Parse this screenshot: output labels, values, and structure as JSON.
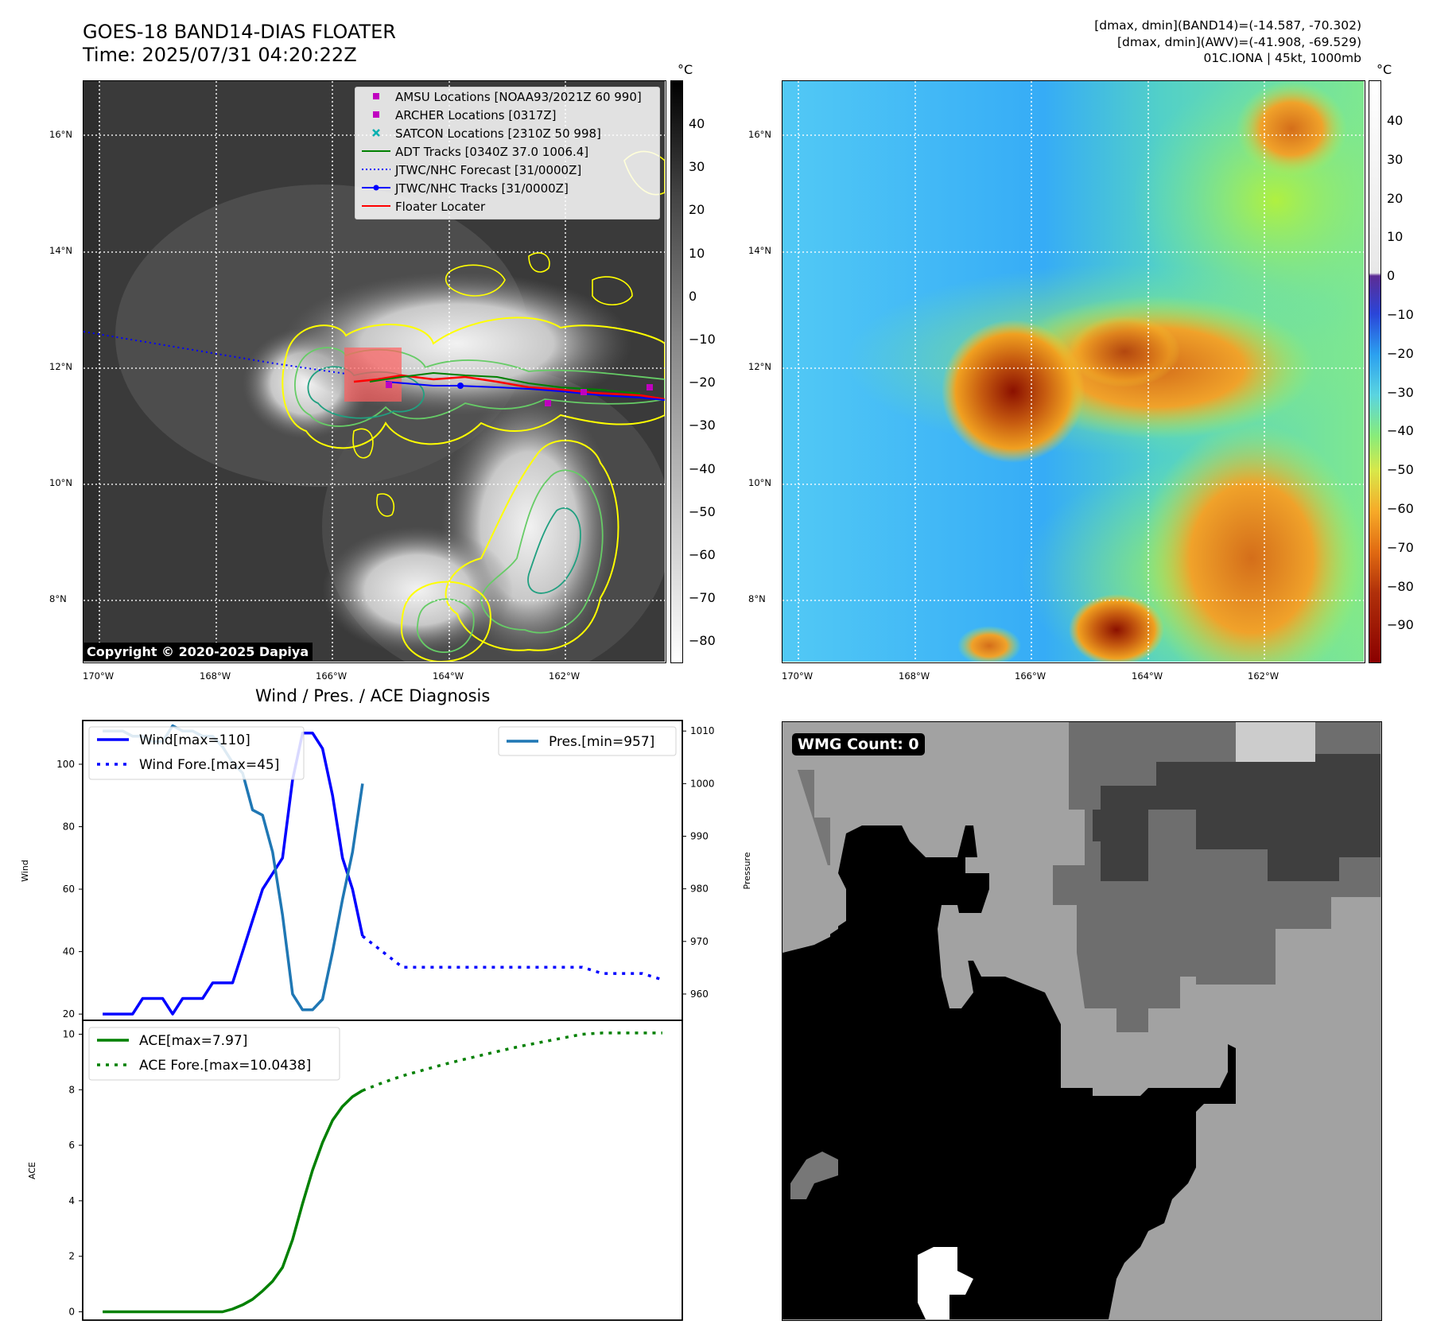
{
  "header": {
    "title_line1": "GOES-18 BAND14-DIAS FLOATER",
    "title_line2": "Time: 2025/07/31 04:20:22Z",
    "stats_line1": "[dmax, dmin](BAND14)=(-14.587, -70.302)",
    "stats_line2": "[dmax, dmin](AWV)=(-41.908, -69.529)",
    "stats_line3": "01C.IONA | 45kt, 1000mb"
  },
  "map_axes": {
    "lat_labels": [
      "16°N",
      "14°N",
      "12°N",
      "10°N",
      "8°N"
    ],
    "lon_labels": [
      "170°W",
      "168°W",
      "166°W",
      "164°W",
      "162°W"
    ],
    "unit": "°C",
    "copyright": "Copyright © 2020-2025 Dapiya"
  },
  "left_colorbar": {
    "ticks": [
      "40",
      "30",
      "20",
      "10",
      "0",
      "−10",
      "−20",
      "−30",
      "−40",
      "−50",
      "−60",
      "−70",
      "−80"
    ]
  },
  "right_colorbar": {
    "ticks": [
      "40",
      "30",
      "20",
      "10",
      "0",
      "−10",
      "−20",
      "−30",
      "−40",
      "−50",
      "−60",
      "−70",
      "−80",
      "−90"
    ]
  },
  "map_legend": {
    "items": [
      {
        "label": "AMSU Locations [NOAA93/2021Z 60 990]",
        "color": "#c000c0",
        "kind": "square"
      },
      {
        "label": "ARCHER Locations [0317Z]",
        "color": "#c000c0",
        "kind": "square"
      },
      {
        "label": "SATCON Locations [2310Z 50 998]",
        "color": "#00b0b0",
        "kind": "x"
      },
      {
        "label": "ADT Tracks [0340Z 37.0 1006.4]",
        "color": "#008000",
        "kind": "line"
      },
      {
        "label": "JTWC/NHC Forecast [31/0000Z]",
        "color": "#0000ff",
        "kind": "dotted"
      },
      {
        "label": "JTWC/NHC Tracks [31/0000Z]",
        "color": "#0000ff",
        "kind": "line-dot"
      },
      {
        "label": "Floater Locater",
        "color": "#ff0000",
        "kind": "line"
      }
    ]
  },
  "chart_data": [
    {
      "type": "line",
      "title": "Wind / Pres. / ACE Diagnosis",
      "ylabel": "Wind",
      "ylabel_right": "Pressure",
      "ylim": [
        18,
        114
      ],
      "ylim_right": [
        955,
        1012
      ],
      "yticks": [
        20,
        40,
        60,
        80,
        100
      ],
      "yticks_right": [
        960,
        970,
        980,
        990,
        1000,
        1010
      ],
      "series": [
        {
          "name": "Wind[max=110]",
          "color": "#0000ff",
          "style": "solid",
          "x": [
            0,
            1,
            2,
            3,
            4,
            5,
            6,
            7,
            8,
            9,
            10,
            11,
            12,
            13,
            14,
            15,
            16,
            17,
            18,
            19,
            20,
            21,
            22,
            23,
            24,
            25,
            26
          ],
          "values": [
            20,
            20,
            20,
            20,
            25,
            25,
            25,
            20,
            25,
            25,
            25,
            30,
            30,
            30,
            40,
            50,
            60,
            65,
            70,
            95,
            110,
            110,
            105,
            90,
            70,
            60,
            45
          ]
        },
        {
          "name": "Wind Fore.[max=45]",
          "color": "#0000ff",
          "style": "dotted",
          "x": [
            26,
            28,
            30,
            32,
            34,
            36,
            38,
            40,
            42,
            44,
            46,
            48,
            50,
            52,
            54,
            56
          ],
          "values": [
            45,
            40,
            35,
            35,
            35,
            35,
            35,
            35,
            35,
            35,
            35,
            35,
            33,
            33,
            33,
            31
          ]
        },
        {
          "name": "Pres.[min=957]",
          "color": "#1f77b4",
          "style": "solid",
          "axis": "right",
          "x": [
            0,
            1,
            2,
            3,
            4,
            5,
            6,
            7,
            8,
            9,
            10,
            11,
            12,
            13,
            14,
            15,
            16,
            17,
            18,
            19,
            20,
            21,
            22,
            23,
            24,
            25,
            26
          ],
          "values": [
            1010,
            1010,
            1010,
            1009,
            1009,
            1008,
            1008,
            1011,
            1010,
            1010,
            1009,
            1009,
            1007,
            1004,
            1002,
            995,
            994,
            987,
            975,
            960,
            957,
            957,
            959,
            968,
            978,
            987,
            1000
          ]
        }
      ],
      "legend": [
        "top-left",
        "top-right"
      ]
    },
    {
      "type": "line",
      "ylabel": "ACE",
      "ylim": [
        -0.3,
        10.5
      ],
      "yticks": [
        0,
        2,
        4,
        6,
        8,
        10
      ],
      "series": [
        {
          "name": "ACE[max=7.97]",
          "color": "#008000",
          "style": "solid",
          "x": [
            0,
            1,
            2,
            3,
            4,
            5,
            6,
            7,
            8,
            9,
            10,
            11,
            12,
            13,
            14,
            15,
            16,
            17,
            18,
            19,
            20,
            21,
            22,
            23,
            24,
            25,
            26
          ],
          "values": [
            0,
            0,
            0,
            0,
            0,
            0,
            0,
            0,
            0,
            0,
            0,
            0,
            0,
            0.1,
            0.25,
            0.45,
            0.75,
            1.1,
            1.6,
            2.6,
            3.9,
            5.1,
            6.1,
            6.9,
            7.4,
            7.75,
            7.97
          ]
        },
        {
          "name": "ACE Fore.[max=10.0438]",
          "color": "#008000",
          "style": "dotted",
          "x": [
            26,
            28,
            30,
            32,
            34,
            36,
            38,
            40,
            42,
            44,
            46,
            48,
            50,
            52,
            54,
            56
          ],
          "values": [
            7.97,
            8.25,
            8.5,
            8.7,
            8.9,
            9.08,
            9.25,
            9.42,
            9.58,
            9.72,
            9.86,
            10.0,
            10.0438,
            10.0438,
            10.0438,
            10.0438
          ]
        }
      ],
      "legend": "top-left"
    }
  ],
  "wmg": {
    "label": "WMG Count: 0"
  }
}
